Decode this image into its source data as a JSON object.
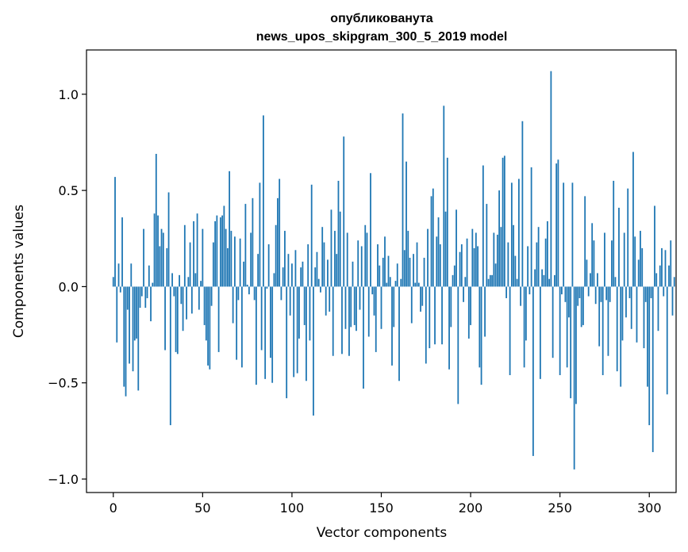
{
  "chart_data": {
    "type": "bar",
    "title_lines": [
      "опубликованута",
      "news_upos_skipgram_300_5_2019 model"
    ],
    "xlabel": "Vector components",
    "ylabel": "Components values",
    "xlim": [
      -15,
      315
    ],
    "ylim": [
      -1.07,
      1.23
    ],
    "xticks": [
      0,
      50,
      100,
      150,
      200,
      250,
      300
    ],
    "yticks": [
      -1.0,
      -0.5,
      0.0,
      0.5,
      1.0
    ],
    "ytick_labels": [
      "−1.0",
      "−0.5",
      "0.0",
      "0.5",
      "1.0"
    ],
    "bar_color": "#1f77b4",
    "grid": false,
    "legend": "none",
    "values": [
      0.05,
      0.57,
      -0.29,
      0.12,
      -0.03,
      0.36,
      -0.52,
      -0.57,
      -0.12,
      -0.4,
      0.12,
      -0.44,
      -0.28,
      -0.27,
      -0.54,
      -0.11,
      -0.05,
      0.3,
      -0.11,
      -0.06,
      0.11,
      -0.18,
      0.02,
      0.38,
      0.69,
      0.37,
      0.21,
      0.3,
      0.28,
      -0.33,
      0.2,
      0.49,
      -0.72,
      0.07,
      -0.05,
      -0.34,
      -0.35,
      0.06,
      -0.09,
      -0.23,
      0.32,
      -0.17,
      0.05,
      0.23,
      -0.14,
      0.34,
      0.07,
      0.38,
      -0.12,
      0.03,
      0.3,
      -0.2,
      -0.28,
      -0.41,
      -0.43,
      -0.1,
      0.23,
      0.34,
      0.37,
      -0.34,
      0.36,
      0.37,
      0.42,
      0.3,
      0.2,
      0.6,
      0.29,
      -0.19,
      0.26,
      -0.38,
      -0.07,
      0.25,
      -0.42,
      0.13,
      0.43,
      0.01,
      -0.04,
      0.28,
      0.46,
      -0.07,
      -0.51,
      0.17,
      0.54,
      -0.33,
      0.89,
      -0.48,
      -0.01,
      0.22,
      -0.37,
      -0.5,
      0.07,
      0.32,
      0.46,
      0.56,
      -0.07,
      0.1,
      0.29,
      -0.58,
      0.17,
      -0.15,
      0.12,
      -0.47,
      0.19,
      -0.45,
      -0.27,
      0.1,
      0.13,
      -0.2,
      -0.49,
      0.22,
      -0.28,
      0.53,
      -0.67,
      0.1,
      0.18,
      0.04,
      -0.03,
      0.31,
      0.23,
      -0.15,
      0.14,
      -0.13,
      0.4,
      -0.36,
      0.29,
      0.17,
      0.55,
      0.39,
      -0.35,
      0.78,
      -0.22,
      0.28,
      -0.36,
      -0.21,
      0.13,
      -0.2,
      -0.23,
      0.24,
      -0.12,
      0.21,
      -0.53,
      0.32,
      0.28,
      -0.26,
      0.59,
      -0.04,
      -0.15,
      -0.34,
      0.22,
      0.11,
      -0.22,
      0.15,
      0.26,
      0.02,
      0.16,
      0.05,
      -0.41,
      -0.21,
      0.03,
      0.12,
      -0.49,
      0.04,
      0.9,
      0.19,
      0.65,
      0.29,
      0.15,
      -0.19,
      0.17,
      0.02,
      0.23,
      0.02,
      -0.13,
      -0.1,
      0.15,
      -0.4,
      0.3,
      -0.32,
      0.47,
      0.51,
      -0.3,
      0.26,
      0.36,
      0.22,
      -0.3,
      0.94,
      0.39,
      0.67,
      -0.43,
      -0.21,
      0.06,
      0.11,
      0.4,
      -0.61,
      0.18,
      0.22,
      -0.08,
      0.05,
      0.25,
      -0.27,
      -0.2,
      0.3,
      0.2,
      0.28,
      0.21,
      -0.42,
      -0.51,
      0.63,
      -0.26,
      0.43,
      0.04,
      0.06,
      0.06,
      0.28,
      0.12,
      0.27,
      0.5,
      0.31,
      0.67,
      0.68,
      -0.06,
      0.23,
      -0.46,
      0.54,
      0.32,
      0.16,
      0.04,
      0.56,
      -0.1,
      0.86,
      -0.42,
      -0.28,
      0.21,
      -0.04,
      0.62,
      -0.88,
      0.09,
      0.23,
      0.31,
      -0.48,
      0.09,
      0.06,
      0.25,
      0.34,
      0.04,
      1.12,
      -0.37,
      0.06,
      0.64,
      0.66,
      -0.46,
      -0.04,
      0.54,
      -0.08,
      -0.42,
      -0.16,
      -0.58,
      0.54,
      -0.95,
      -0.61,
      -0.1,
      -0.06,
      -0.21,
      -0.2,
      0.47,
      0.14,
      -0.05,
      0.07,
      0.33,
      0.24,
      -0.09,
      0.07,
      -0.31,
      -0.08,
      -0.46,
      0.28,
      -0.07,
      -0.36,
      -0.08,
      0.24,
      0.55,
      0.05,
      -0.44,
      0.41,
      -0.52,
      -0.28,
      0.28,
      -0.16,
      0.51,
      -0.06,
      -0.22,
      0.7,
      0.26,
      -0.29,
      0.14,
      0.29,
      0.2,
      -0.32,
      -0.08,
      -0.52,
      -0.72,
      -0.06,
      -0.86,
      0.42,
      0.07,
      -0.23,
      0.11,
      0.2,
      -0.05,
      0.19,
      -0.56,
      0.11,
      0.24,
      -0.15,
      0.05
    ]
  }
}
